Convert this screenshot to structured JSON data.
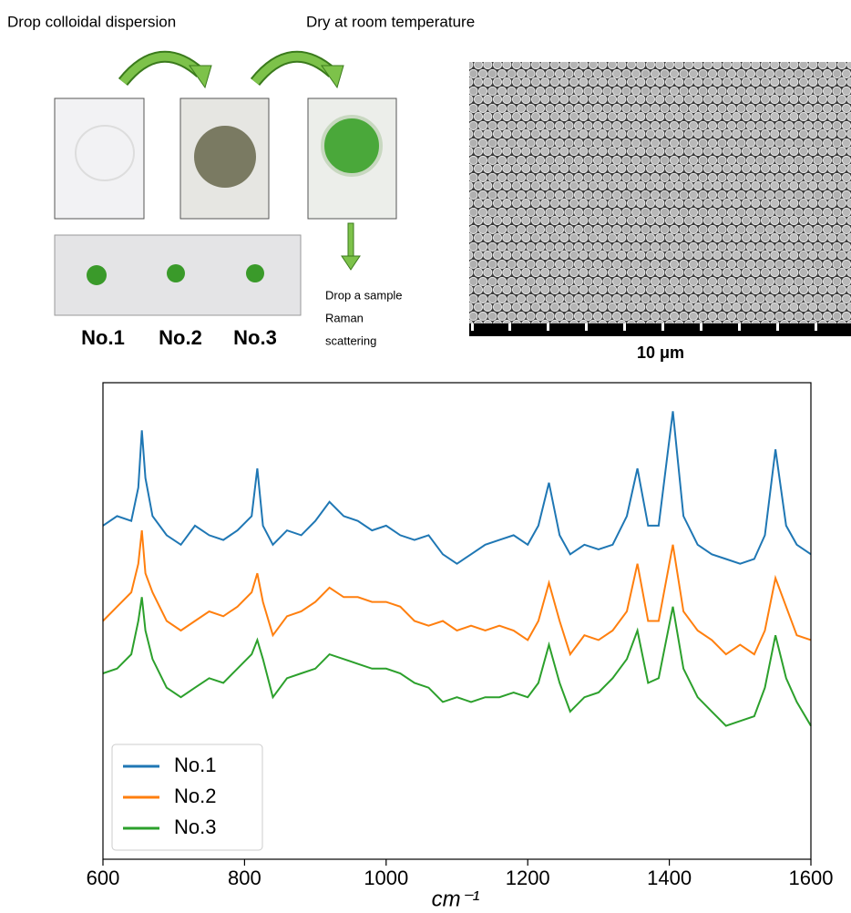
{
  "figure": {
    "step1": "Drop colloidal dispersion",
    "step2": "Dry at room temperature",
    "samples": [
      "No.1",
      "No.2",
      "No.3"
    ],
    "step3": [
      "Drop a sample",
      "Raman",
      "scattering"
    ],
    "scale_bar": "10 μm"
  },
  "chart_data": {
    "type": "line",
    "xlabel": "cm⁻¹",
    "x": [
      600,
      620,
      640,
      650,
      655,
      660,
      670,
      690,
      710,
      730,
      750,
      770,
      790,
      810,
      818,
      826,
      840,
      860,
      880,
      900,
      920,
      940,
      960,
      980,
      1000,
      1020,
      1040,
      1060,
      1080,
      1100,
      1120,
      1140,
      1160,
      1180,
      1200,
      1215,
      1230,
      1245,
      1260,
      1280,
      1300,
      1320,
      1340,
      1355,
      1370,
      1385,
      1405,
      1420,
      1440,
      1460,
      1480,
      1500,
      1520,
      1535,
      1550,
      1565,
      1580,
      1600
    ],
    "series": [
      {
        "name": "No.1",
        "color": "#1f77b4",
        "values": [
          70,
          72,
          71,
          78,
          90,
          80,
          72,
          68,
          66,
          70,
          68,
          67,
          69,
          72,
          82,
          70,
          66,
          69,
          68,
          71,
          75,
          72,
          71,
          69,
          70,
          68,
          67,
          68,
          64,
          62,
          64,
          66,
          67,
          68,
          66,
          70,
          79,
          68,
          64,
          66,
          65,
          66,
          72,
          82,
          70,
          70,
          94,
          72,
          66,
          64,
          63,
          62,
          63,
          68,
          86,
          70,
          66,
          64
        ]
      },
      {
        "name": "No.2",
        "color": "#ff7f0e",
        "values": [
          50,
          53,
          56,
          62,
          69,
          60,
          56,
          50,
          48,
          50,
          52,
          51,
          53,
          56,
          60,
          54,
          47,
          51,
          52,
          54,
          57,
          55,
          55,
          54,
          54,
          53,
          50,
          49,
          50,
          48,
          49,
          48,
          49,
          48,
          46,
          50,
          58,
          50,
          43,
          47,
          46,
          48,
          52,
          62,
          50,
          50,
          66,
          52,
          48,
          46,
          43,
          45,
          43,
          48,
          59,
          53,
          47,
          46
        ]
      },
      {
        "name": "No.3",
        "color": "#2ca02c",
        "values": [
          39,
          40,
          43,
          50,
          55,
          48,
          42,
          36,
          34,
          36,
          38,
          37,
          40,
          43,
          46,
          42,
          34,
          38,
          39,
          40,
          43,
          42,
          41,
          40,
          40,
          39,
          37,
          36,
          33,
          34,
          33,
          34,
          34,
          35,
          34,
          37,
          45,
          37,
          31,
          34,
          35,
          38,
          42,
          48,
          37,
          38,
          53,
          40,
          34,
          31,
          28,
          29,
          30,
          36,
          47,
          38,
          33,
          28
        ]
      }
    ],
    "xlim": [
      600,
      1600
    ],
    "xticks": [
      600,
      800,
      1000,
      1200,
      1400,
      1600
    ],
    "ylim": [
      0,
      100
    ],
    "legend": "lower left"
  }
}
